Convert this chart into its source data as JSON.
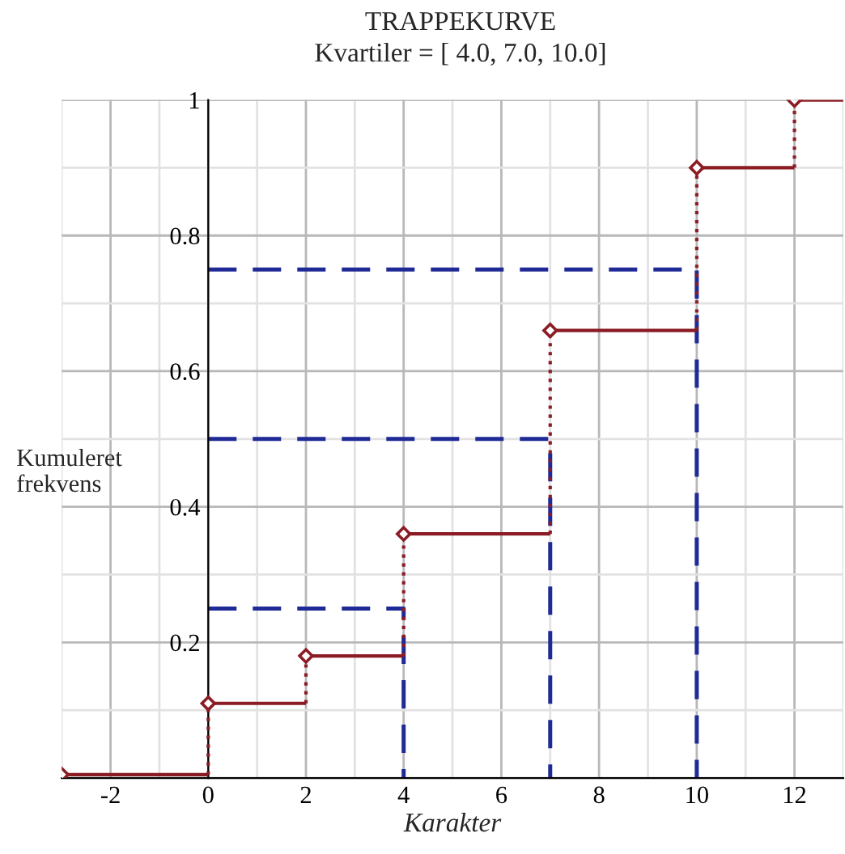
{
  "chart_data": {
    "type": "step",
    "title": "TRAPPEKURVE",
    "subtitle": "Kvartiler = [ 4.0, 7.0, 10.0]",
    "xlabel": "Karakter",
    "ylabel": "Kumuleret\nfrekvens",
    "series": [
      {
        "color": "#8b1c24",
        "marker": "diamond",
        "x": [
          -3,
          0,
          2,
          4,
          7,
          10,
          12
        ],
        "values": [
          0.005,
          0.11,
          0.18,
          0.36,
          0.66,
          0.9,
          1.0
        ]
      },
      {
        "type": "line",
        "color": "#1f2a96",
        "line_style": "dashed",
        "x": [
          0,
          4,
          4
        ],
        "values": [
          0.25,
          0.25,
          0
        ]
      },
      {
        "type": "line",
        "color": "#1f2a96",
        "line_style": "dashed",
        "x": [
          0,
          7,
          7
        ],
        "values": [
          0.5,
          0.5,
          0
        ]
      },
      {
        "type": "line",
        "color": "#1f2a96",
        "line_style": "dashed",
        "x": [
          0,
          10,
          10
        ],
        "values": [
          0.75,
          0.75,
          0
        ]
      }
    ],
    "xlim": [
      -3,
      13
    ],
    "ylim": [
      0,
      1
    ],
    "xticks": [
      -2,
      0,
      2,
      4,
      6,
      8,
      10,
      12
    ],
    "yticks": [
      0.2,
      0.4,
      0.6,
      0.8,
      1
    ],
    "grid": true
  }
}
